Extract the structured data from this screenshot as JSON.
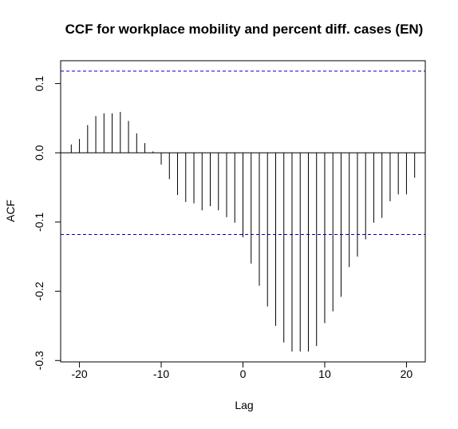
{
  "chart_data": {
    "type": "bar",
    "title": "CCF for workplace mobility and percent diff. cases (EN)",
    "xlabel": "Lag",
    "ylabel": "ACF",
    "xlim": [
      -22.3,
      22.3
    ],
    "ylim": [
      -0.302,
      0.133
    ],
    "xticks": [
      -20,
      -10,
      0,
      10,
      20
    ],
    "yticks": [
      0.1,
      0.0,
      -0.1,
      -0.2,
      -0.3
    ],
    "xtick_labels": [
      "-20",
      "-10",
      "0",
      "10",
      "20"
    ],
    "ytick_labels": [
      "0.1",
      "0.0",
      "-0.1",
      "-0.2",
      "-0.3"
    ],
    "confidence_bound": 0.118,
    "confidence_line_color": "#0000cd",
    "grid": false,
    "lags": [
      -21,
      -20,
      -19,
      -18,
      -17,
      -16,
      -15,
      -14,
      -13,
      -12,
      -11,
      -10,
      -9,
      -8,
      -7,
      -6,
      -5,
      -4,
      -3,
      -2,
      -1,
      0,
      1,
      2,
      3,
      4,
      5,
      6,
      7,
      8,
      9,
      10,
      11,
      12,
      13,
      14,
      15,
      16,
      17,
      18,
      19,
      20,
      21
    ],
    "values": [
      0.012,
      0.02,
      0.04,
      0.053,
      0.057,
      0.057,
      0.059,
      0.046,
      0.028,
      0.014,
      0.002,
      -0.017,
      -0.038,
      -0.061,
      -0.071,
      -0.073,
      -0.083,
      -0.077,
      -0.083,
      -0.093,
      -0.101,
      -0.122,
      -0.16,
      -0.192,
      -0.222,
      -0.25,
      -0.274,
      -0.287,
      -0.287,
      -0.287,
      -0.279,
      -0.246,
      -0.229,
      -0.208,
      -0.165,
      -0.15,
      -0.125,
      -0.101,
      -0.094,
      -0.07,
      -0.06,
      -0.06,
      -0.036
    ]
  }
}
